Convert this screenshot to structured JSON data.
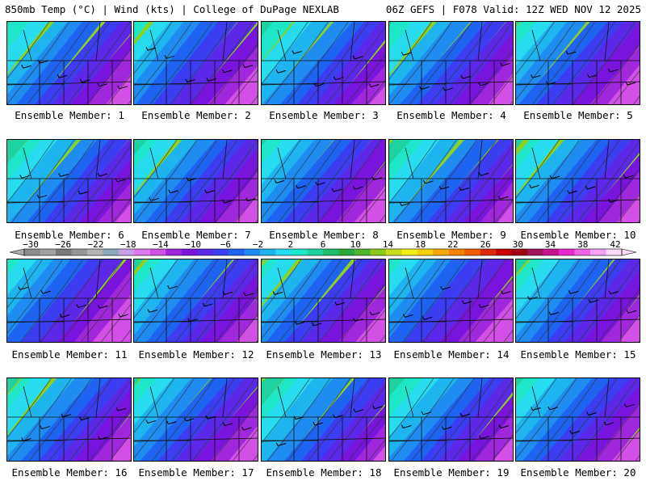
{
  "header": {
    "left": "850mb Temp (°C) | Wind (kts) | College of DuPage NEXLAB",
    "right": "06Z GEFS | F078 Valid: 12Z WED NOV 12 2025"
  },
  "panels": [
    {
      "label": "Ensemble Member: 1"
    },
    {
      "label": "Ensemble Member: 2"
    },
    {
      "label": "Ensemble Member: 3"
    },
    {
      "label": "Ensemble Member: 4"
    },
    {
      "label": "Ensemble Member: 5"
    },
    {
      "label": "Ensemble Member: 6"
    },
    {
      "label": "Ensemble Member: 7"
    },
    {
      "label": "Ensemble Member: 8"
    },
    {
      "label": "Ensemble Member: 9"
    },
    {
      "label": "Ensemble Member: 10"
    },
    {
      "label": "Ensemble Member: 11"
    },
    {
      "label": "Ensemble Member: 12"
    },
    {
      "label": "Ensemble Member: 13"
    },
    {
      "label": "Ensemble Member: 14"
    },
    {
      "label": "Ensemble Member: 15"
    },
    {
      "label": "Ensemble Member: 16"
    },
    {
      "label": "Ensemble Member: 17"
    },
    {
      "label": "Ensemble Member: 18"
    },
    {
      "label": "Ensemble Member: 19"
    },
    {
      "label": "Ensemble Member: 20"
    }
  ],
  "colorbar": {
    "ticks": [
      "−30",
      "−26",
      "−22",
      "−18",
      "−14",
      "−10",
      "−6",
      "−2",
      "2",
      "6",
      "10",
      "14",
      "18",
      "22",
      "26",
      "30",
      "34",
      "38",
      "42"
    ],
    "colors": [
      "#8c8c8c",
      "#a0a0a0",
      "#7a7a7a",
      "#969696",
      "#b4b4b4",
      "#8aaab8",
      "#c8a0e6",
      "#dc78f0",
      "#d250e6",
      "#a028dc",
      "#7814dc",
      "#5a28e6",
      "#3c3cf0",
      "#1e64f0",
      "#1e8cf0",
      "#1eb4f0",
      "#28dcf0",
      "#1ee6c8",
      "#1ed2a0",
      "#1ebe6e",
      "#28aa3c",
      "#50b428",
      "#8cc81e",
      "#c8dc1e",
      "#f0f014",
      "#f5d20a",
      "#f5aa00",
      "#f58200",
      "#f05a00",
      "#dc2800",
      "#c80000",
      "#a00014",
      "#a0145a",
      "#c8148c",
      "#e628c8",
      "#f064e6",
      "#f5a0f0",
      "#fadcfa"
    ]
  }
}
